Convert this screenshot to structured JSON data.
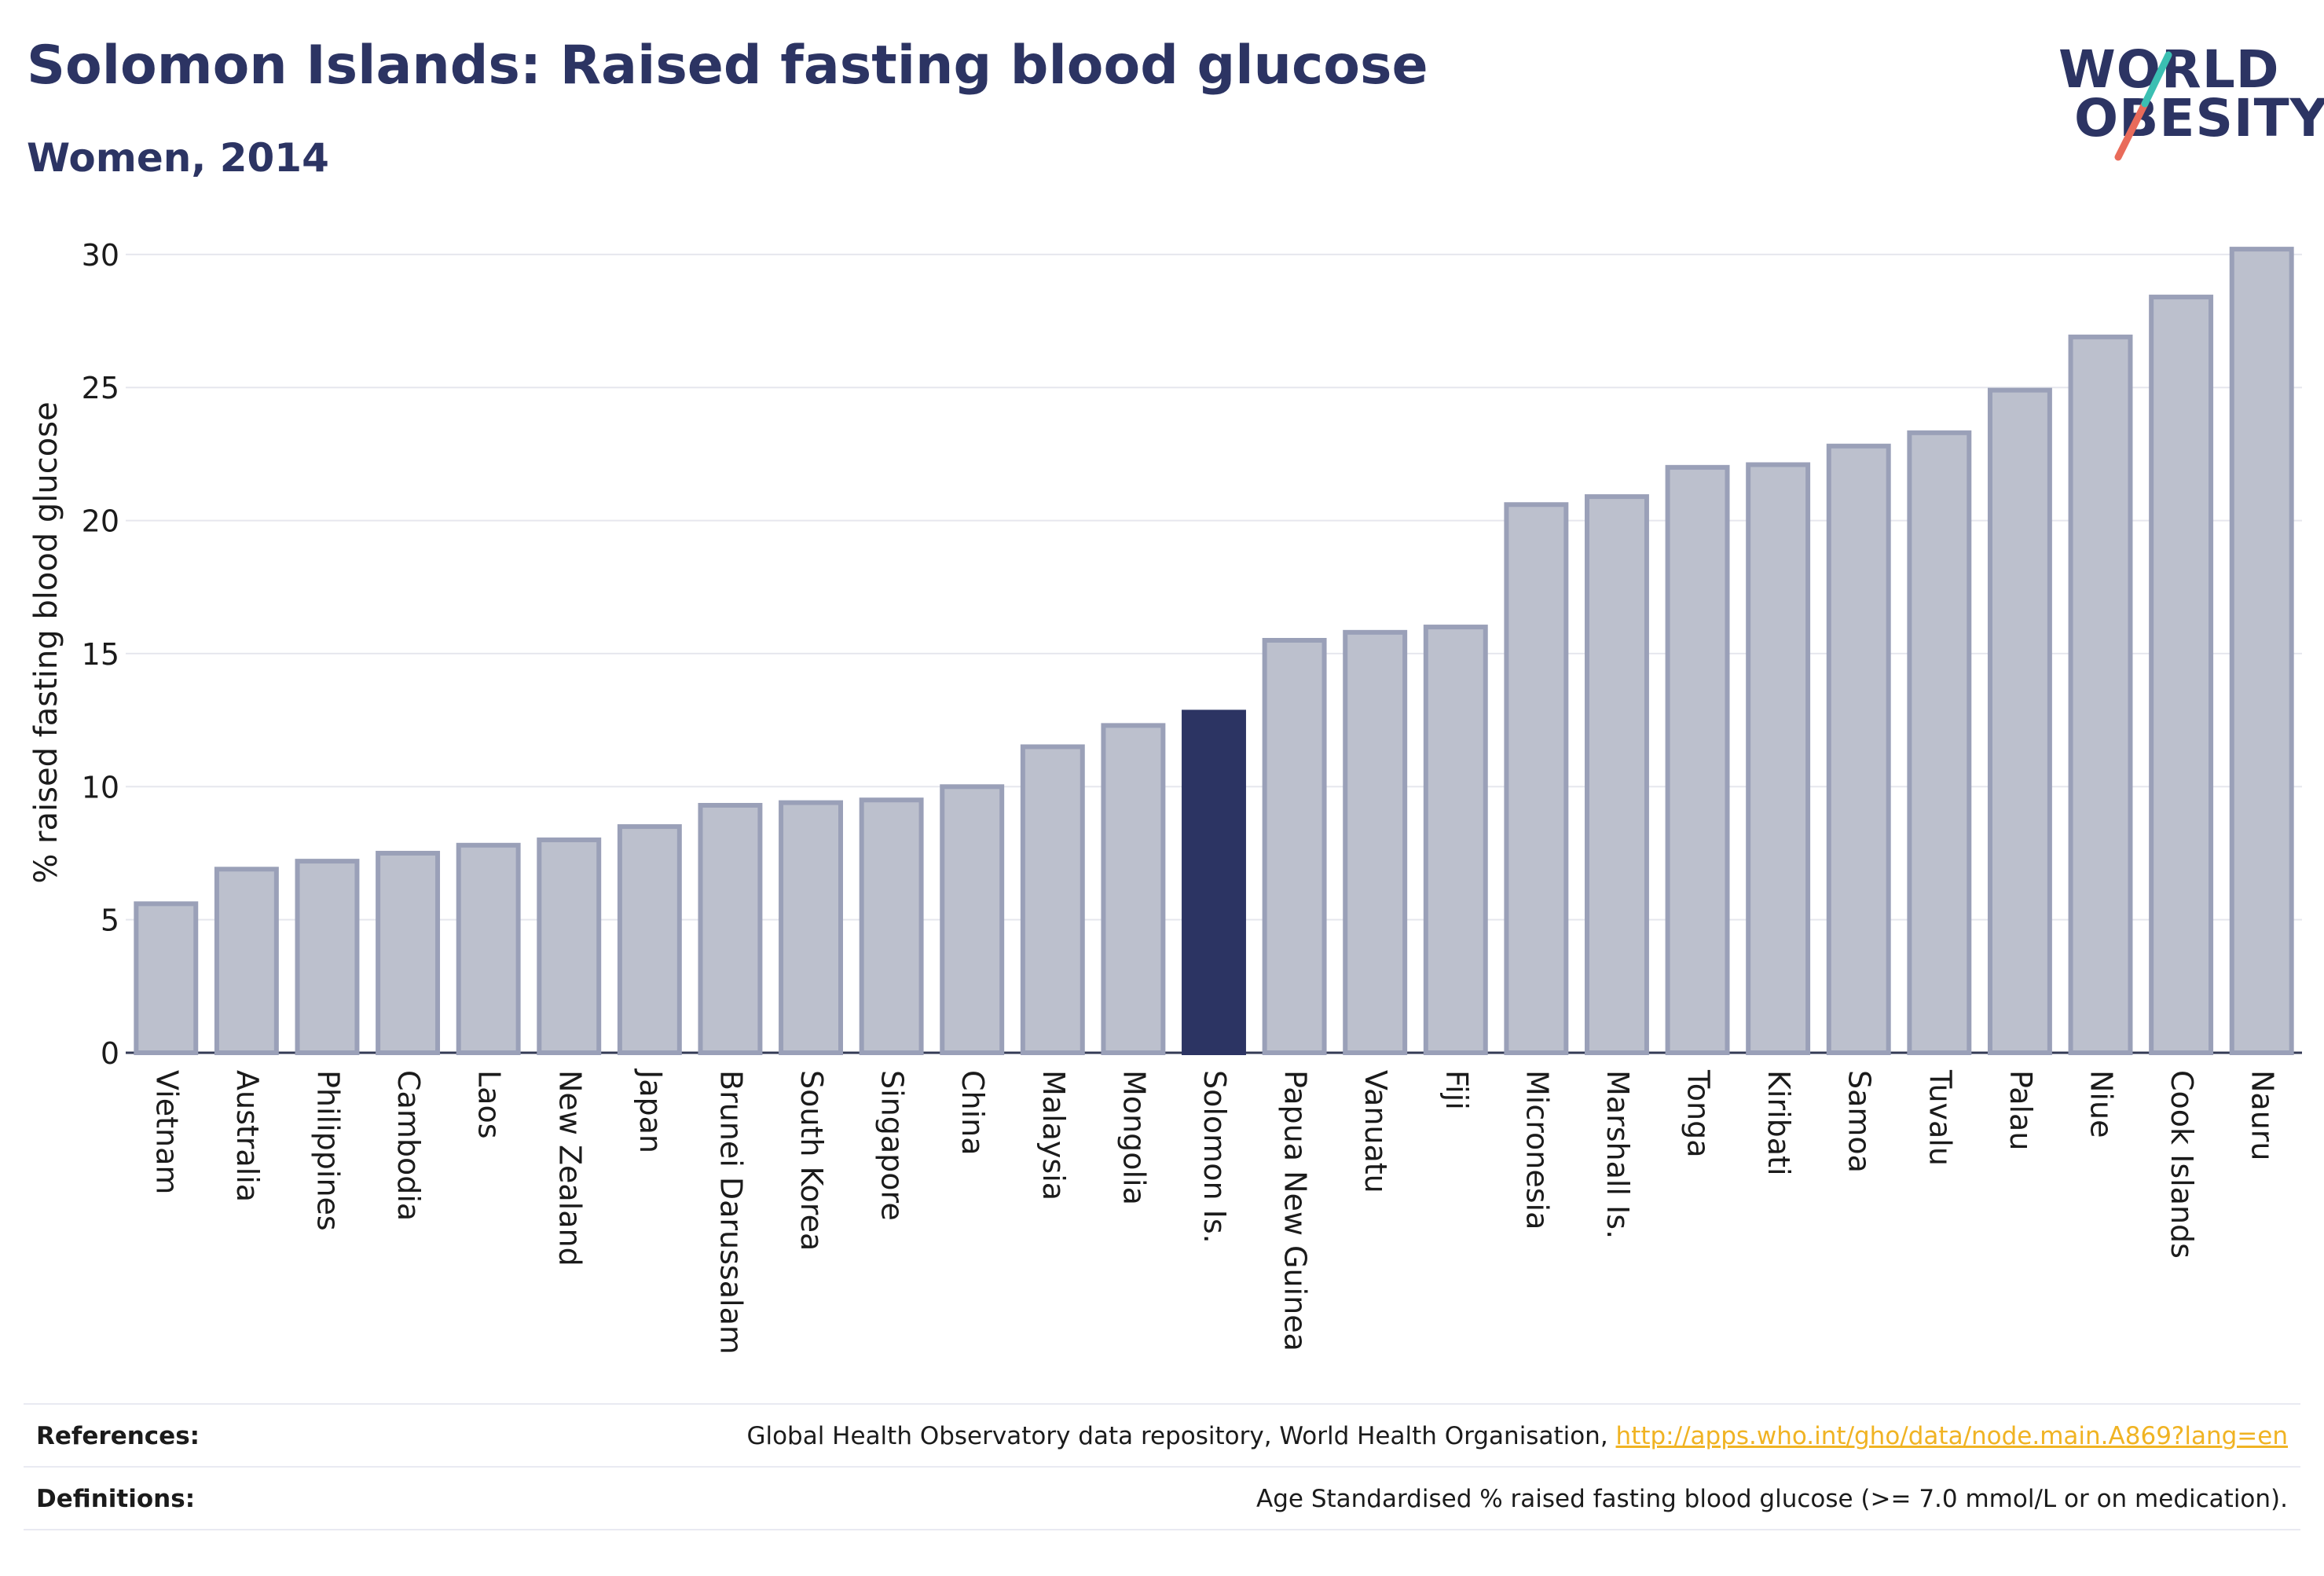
{
  "header": {
    "title": "Solomon Islands: Raised fasting blood glucose",
    "subtitle": "Women, 2014"
  },
  "logo": {
    "line1": "WORLD",
    "line2": "OBESITY",
    "accent_teal": "#3bbfb2",
    "accent_coral": "#e96b5a"
  },
  "chart_data": {
    "type": "bar",
    "ylabel": "% raised fasting blood glucose",
    "xlabel": "",
    "ylim": [
      0,
      31
    ],
    "yticks": [
      0,
      5,
      10,
      15,
      20,
      25,
      30
    ],
    "grid": true,
    "highlight": "Solomon Is.",
    "colors": {
      "bar": "#bcc0cd",
      "bar_edge": "#9aa0b8",
      "highlight": "#2c3463"
    },
    "categories": [
      "Vietnam",
      "Australia",
      "Philippines",
      "Cambodia",
      "Laos",
      "New Zealand",
      "Japan",
      "Brunei Darussalam",
      "South Korea",
      "Singapore",
      "China",
      "Malaysia",
      "Mongolia",
      "Solomon Is.",
      "Papua New Guinea",
      "Vanuatu",
      "Fiji",
      "Micronesia",
      "Marshall Is.",
      "Tonga",
      "Kiribati",
      "Samoa",
      "Tuvalu",
      "Palau",
      "Niue",
      "Cook Islands",
      "Nauru"
    ],
    "values": [
      5.6,
      6.9,
      7.2,
      7.5,
      7.8,
      8.0,
      8.5,
      9.3,
      9.4,
      9.5,
      10.0,
      11.5,
      12.3,
      12.8,
      15.5,
      15.8,
      16.0,
      20.6,
      20.9,
      22.0,
      22.1,
      22.8,
      23.3,
      24.9,
      26.9,
      28.4,
      30.2
    ]
  },
  "footer": {
    "references_label": "References:",
    "references_text": "Global Health Observatory data repository, World Health Organisation,",
    "references_link": "http://apps.who.int/gho/data/node.main.A869?lang=en",
    "definitions_label": "Definitions:",
    "definitions_text": "Age Standardised % raised fasting blood glucose (>= 7.0 mmol/L or on medication)."
  }
}
